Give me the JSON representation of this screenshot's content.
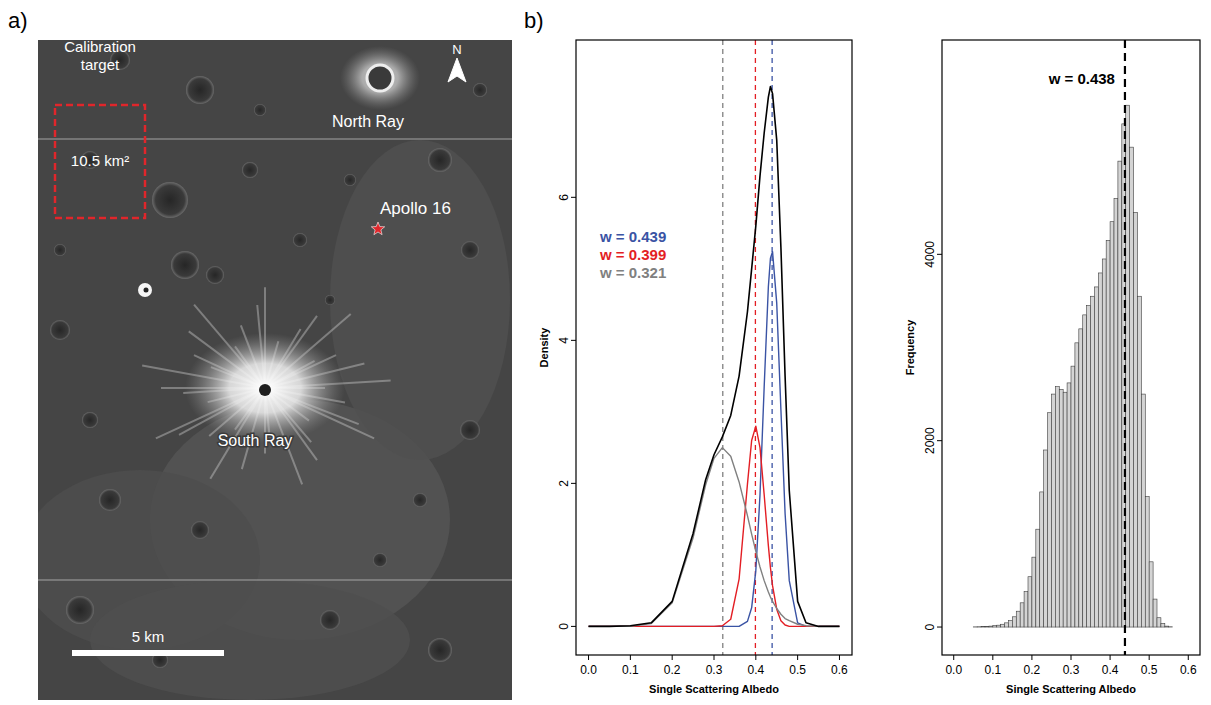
{
  "map": {
    "panel_label": "a)",
    "calibration_label": "Calibration target",
    "area_label": "10.5 km²",
    "north": "N",
    "labels": [
      "North Ray",
      "Apollo 16",
      "South Ray"
    ],
    "scale_bar": "5 km"
  },
  "panel_b_label": "b)",
  "chart_data": [
    {
      "type": "line",
      "x_label": "Single Scattering Albedo",
      "y_label": "Density",
      "x": [
        0,
        0.05,
        0.1,
        0.15,
        0.2,
        0.25,
        0.28,
        0.3,
        0.32,
        0.34,
        0.36,
        0.38,
        0.39,
        0.4,
        0.41,
        0.42,
        0.43,
        0.435,
        0.44,
        0.45,
        0.46,
        0.47,
        0.48,
        0.5,
        0.52,
        0.55,
        0.6
      ],
      "series": [
        {
          "color": "#000000",
          "values": [
            0,
            0,
            0.01,
            0.05,
            0.35,
            1.3,
            2.05,
            2.4,
            2.65,
            2.95,
            3.5,
            4.4,
            5.0,
            5.6,
            6.3,
            6.9,
            7.4,
            7.55,
            7.45,
            6.8,
            5.3,
            3.5,
            1.9,
            0.35,
            0.05,
            0,
            0
          ]
        },
        {
          "name": "w = 0.439",
          "color": "#3a53a4",
          "mean": 0.439,
          "values": [
            0,
            0,
            0,
            0,
            0,
            0,
            0,
            0,
            0,
            0,
            0,
            0.07,
            0.26,
            0.78,
            1.84,
            3.35,
            4.75,
            5.15,
            5.24,
            4.52,
            3.03,
            1.58,
            0.64,
            0.05,
            0,
            0,
            0
          ]
        },
        {
          "name": "w = 0.399",
          "color": "#e31e24",
          "mean": 0.399,
          "values": [
            0,
            0,
            0,
            0,
            0,
            0,
            0,
            0,
            0.01,
            0.1,
            0.66,
            1.99,
            2.6,
            2.8,
            2.5,
            1.84,
            1.13,
            0.82,
            0.57,
            0.24,
            0.08,
            0.02,
            0,
            0,
            0,
            0,
            0
          ]
        },
        {
          "name": "w = 0.321",
          "color": "#808080",
          "mean": 0.321,
          "values": [
            0,
            0,
            0,
            0.04,
            0.33,
            1.24,
            1.98,
            2.35,
            2.5,
            2.38,
            2.02,
            1.55,
            1.29,
            1.05,
            0.83,
            0.64,
            0.48,
            0.41,
            0.35,
            0.25,
            0.17,
            0.11,
            0.08,
            0.03,
            0.01,
            0,
            0
          ]
        }
      ],
      "xlim": [
        -0.03,
        0.63
      ],
      "ylim": [
        -0.4,
        8.2
      ],
      "xticks": [
        {
          "value": 0,
          "label": "0.0"
        },
        0.1,
        0.2,
        0.3,
        0.4,
        0.5,
        0.6
      ],
      "yticks": [
        0,
        2,
        4,
        6
      ],
      "grid": false
    },
    {
      "type": "histogram",
      "x_label": "Single Scattering Albedo",
      "y_label": "Frequency",
      "bins": [
        0,
        0.01,
        0.02,
        0.03,
        0.04,
        0.05,
        0.06,
        0.07,
        0.08,
        0.09,
        0.1,
        0.11,
        0.12,
        0.13,
        0.14,
        0.15,
        0.16,
        0.17,
        0.18,
        0.19,
        0.2,
        0.21,
        0.22,
        0.23,
        0.24,
        0.25,
        0.26,
        0.27,
        0.28,
        0.29,
        0.3,
        0.31,
        0.32,
        0.33,
        0.34,
        0.35,
        0.36,
        0.37,
        0.38,
        0.39,
        0.4,
        0.41,
        0.42,
        0.43,
        0.44,
        0.45,
        0.46,
        0.47,
        0.48,
        0.49,
        0.5,
        0.51,
        0.52,
        0.53,
        0.54,
        0.55,
        0.56,
        0.57,
        0.58,
        0.59,
        0.6
      ],
      "values": [
        0,
        0,
        0,
        0,
        0,
        2,
        3,
        5,
        8,
        10,
        15,
        20,
        30,
        45,
        70,
        110,
        170,
        260,
        380,
        540,
        750,
        1050,
        1450,
        1900,
        2300,
        2500,
        2580,
        2550,
        2520,
        2620,
        2800,
        3050,
        3200,
        3350,
        3450,
        3550,
        3650,
        3800,
        3950,
        4150,
        4350,
        4600,
        5000,
        5400,
        5600,
        5150,
        4450,
        3550,
        2500,
        1400,
        700,
        300,
        100,
        40,
        10,
        3,
        0,
        0,
        0,
        0
      ],
      "color": "#d4d4d4",
      "annotations": [
        {
          "text": "w = 0.438",
          "x": 0.438
        }
      ],
      "xlim": [
        -0.03,
        0.63
      ],
      "ylim": [
        -300,
        6300
      ],
      "xticks": [
        {
          "value": 0,
          "label": "0.0"
        },
        0.1,
        0.2,
        0.3,
        0.4,
        0.5,
        0.6
      ],
      "yticks": [
        0,
        2000,
        4000
      ],
      "grid": false
    }
  ]
}
